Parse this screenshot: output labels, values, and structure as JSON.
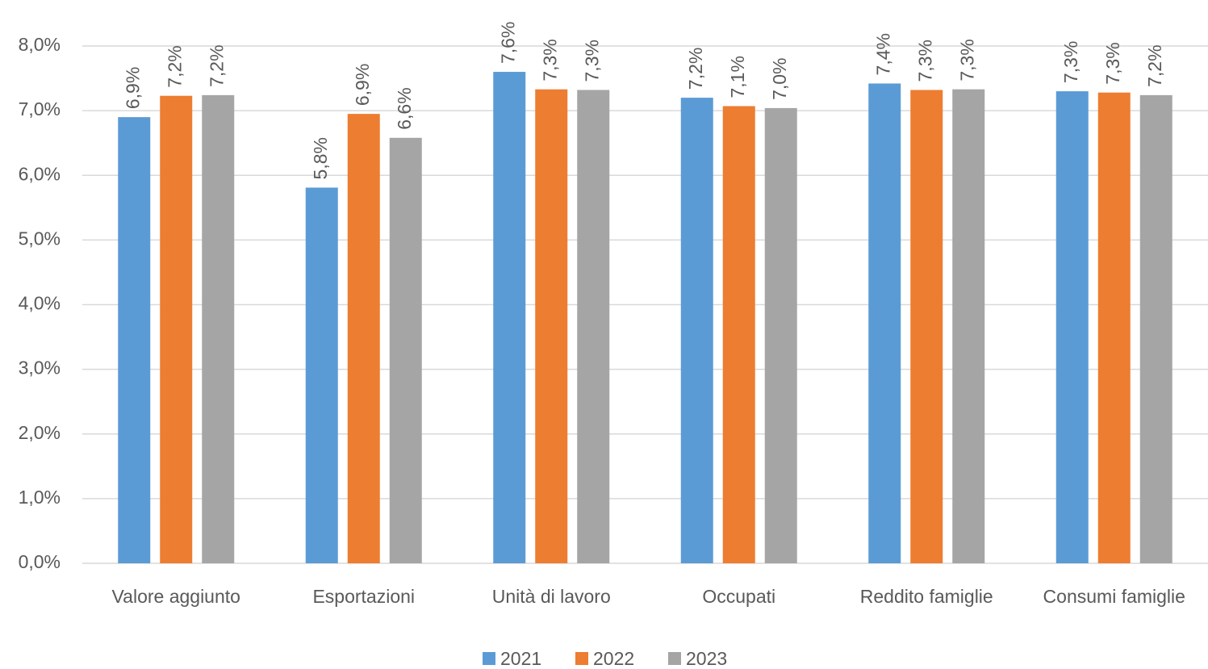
{
  "chart_data": {
    "type": "bar",
    "categories": [
      "Valore aggiunto",
      "Esportazioni",
      "Unità di lavoro",
      "Occupati",
      "Reddito famiglie",
      "Consumi famiglie"
    ],
    "series": [
      {
        "name": "2021",
        "color": "#5b9bd5",
        "values": [
          6.9,
          5.81,
          7.6,
          7.2,
          7.42,
          7.3
        ],
        "value_labels": [
          "6,9%",
          "5,8%",
          "7,6%",
          "7,2%",
          "7,4%",
          "7,3%"
        ]
      },
      {
        "name": "2022",
        "color": "#ed7d31",
        "values": [
          7.23,
          6.95,
          7.33,
          7.07,
          7.32,
          7.28
        ],
        "value_labels": [
          "7,2%",
          "6,9%",
          "7,3%",
          "7,1%",
          "7,3%",
          "7,3%"
        ]
      },
      {
        "name": "2023",
        "color": "#a5a5a5",
        "values": [
          7.24,
          6.58,
          7.32,
          7.04,
          7.33,
          7.24
        ],
        "value_labels": [
          "7,2%",
          "6,6%",
          "7,3%",
          "7,0%",
          "7,3%",
          "7,2%"
        ]
      }
    ],
    "ylim": [
      0,
      8
    ],
    "yticks": [
      {
        "value": 0,
        "label": "0,0%"
      },
      {
        "value": 1,
        "label": "1,0%"
      },
      {
        "value": 2,
        "label": "2,0%"
      },
      {
        "value": 3,
        "label": "3,0%"
      },
      {
        "value": 4,
        "label": "4,0%"
      },
      {
        "value": 5,
        "label": "5,0%"
      },
      {
        "value": 6,
        "label": "6,0%"
      },
      {
        "value": 7,
        "label": "7,0%"
      },
      {
        "value": 8,
        "label": "8,0%"
      }
    ],
    "grid": true,
    "legend": "bottom"
  }
}
